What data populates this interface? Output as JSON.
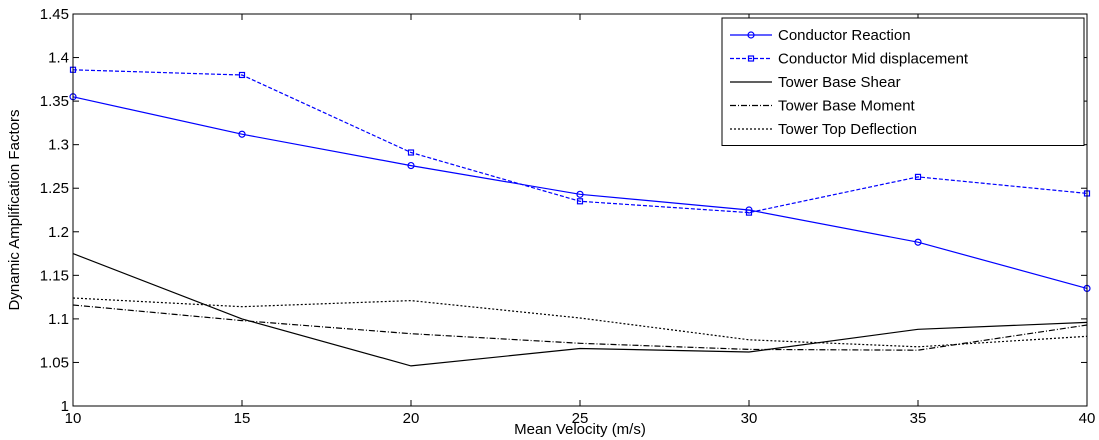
{
  "chart_data": {
    "type": "line",
    "title": "",
    "xlabel": "Mean Velocity  (m/s)",
    "ylabel": "Dynamic Amplification Factors",
    "x": [
      10,
      15,
      20,
      25,
      30,
      35,
      40
    ],
    "xlim": [
      10,
      40
    ],
    "ylim": [
      1.0,
      1.45
    ],
    "xticks": [
      "10",
      "15",
      "20",
      "25",
      "30",
      "35",
      "40"
    ],
    "yticks": [
      "1",
      "1.05",
      "1.1",
      "1.15",
      "1.2",
      "1.25",
      "1.3",
      "1.35",
      "1.4",
      "1.45"
    ],
    "grid": false,
    "legend_position": "top-right",
    "series": [
      {
        "name": "Conductor Reaction",
        "values": [
          1.355,
          1.312,
          1.276,
          1.243,
          1.225,
          1.188,
          1.135
        ],
        "color": "#0000ff",
        "line": "solid",
        "marker": "circle"
      },
      {
        "name": "Conductor Mid displacement",
        "values": [
          1.386,
          1.38,
          1.291,
          1.235,
          1.222,
          1.263,
          1.244
        ],
        "color": "#0000ff",
        "line": "dashed",
        "marker": "square"
      },
      {
        "name": "Tower Base Shear",
        "values": [
          1.175,
          1.1,
          1.046,
          1.066,
          1.062,
          1.088,
          1.096
        ],
        "color": "#000000",
        "line": "solid",
        "marker": "none"
      },
      {
        "name": "Tower Base Moment",
        "values": [
          1.116,
          1.098,
          1.083,
          1.072,
          1.065,
          1.064,
          1.093
        ],
        "color": "#000000",
        "line": "dashdot",
        "marker": "none"
      },
      {
        "name": "Tower Top Deflection",
        "values": [
          1.124,
          1.114,
          1.121,
          1.101,
          1.076,
          1.068,
          1.08
        ],
        "color": "#000000",
        "line": "dotted",
        "marker": "none"
      }
    ]
  }
}
